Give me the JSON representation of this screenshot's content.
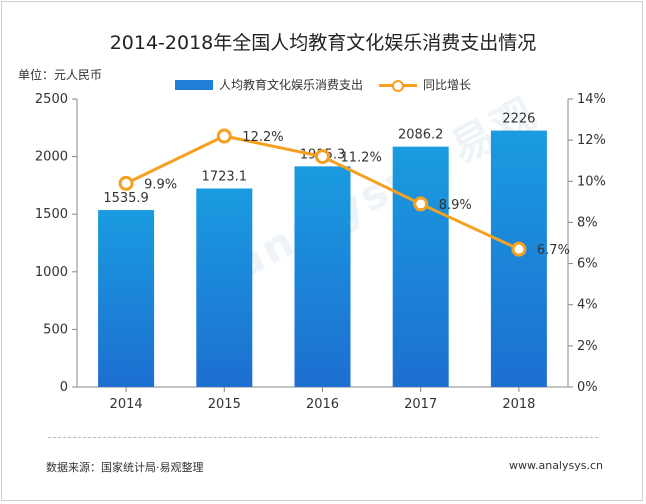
{
  "page": {
    "title": "2014-2018年全国人均教育文化娱乐消费支出情况",
    "unit_label": "单位：元人民币",
    "source": "数据来源：国家统计局·易观整理",
    "website": "www.analysys.cn",
    "watermark": "analysys 易观"
  },
  "legend": {
    "bar_label": "人均教育文化娱乐消费支出",
    "line_label": "同比增长"
  },
  "chart_data": {
    "type": "bar",
    "categories": [
      "2014",
      "2015",
      "2016",
      "2017",
      "2018"
    ],
    "series": [
      {
        "name": "人均教育文化娱乐消费支出",
        "type": "bar",
        "axis": "left",
        "values": [
          1535.9,
          1723.1,
          1915.3,
          2086.2,
          2226
        ],
        "labels": [
          "1535.9",
          "1723.1",
          "1915.3",
          "2086.2",
          "2226"
        ],
        "color": "#1f7fd6"
      },
      {
        "name": "同比增长",
        "type": "line",
        "axis": "right",
        "values": [
          9.9,
          12.2,
          11.2,
          8.9,
          6.7
        ],
        "labels": [
          "9.9%",
          "12.2%",
          "11.2%",
          "8.9%",
          "6.7%"
        ],
        "color": "#f5a020"
      }
    ],
    "y_left": {
      "min": 0,
      "max": 2500,
      "ticks": [
        "0",
        "500",
        "1000",
        "1500",
        "2000",
        "2500"
      ]
    },
    "y_right": {
      "min": 0,
      "max": 14,
      "ticks": [
        "0%",
        "2%",
        "4%",
        "6%",
        "8%",
        "10%",
        "12%",
        "14%"
      ]
    },
    "grid": false,
    "legend_position": "top-center"
  }
}
